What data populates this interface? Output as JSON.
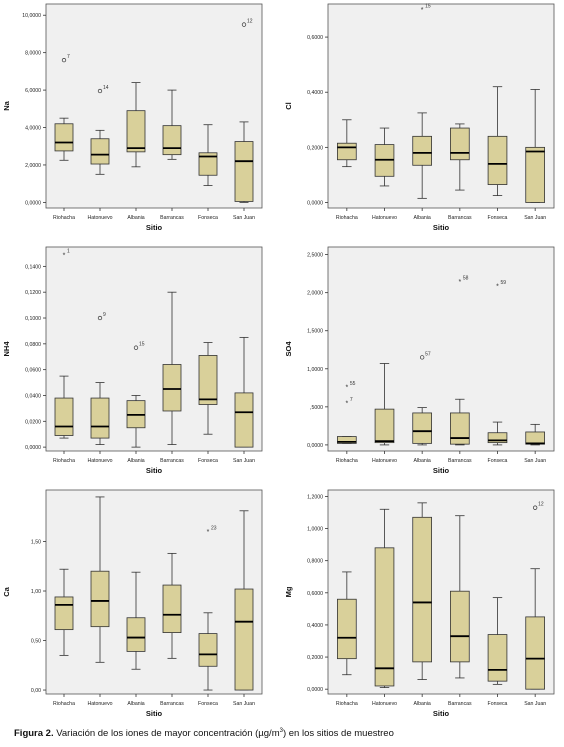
{
  "caption": {
    "label": "Figura 2.",
    "text_before_sup": "Variación de los iones de mayor concentración (µg/m",
    "sup": "3",
    "text_after_sup": ") en los sitios de muestreo"
  },
  "colors": {
    "box_fill": "#d9d09a",
    "box_stroke": "#333333",
    "panel_bg": "#f0f0f0",
    "outlier": "#333333"
  },
  "chart_data": [
    {
      "type": "boxplot",
      "ylabel": "Na",
      "xlabel": "Sitio",
      "categories": [
        "Riohacha",
        "Hatonuevo",
        "Albania",
        "Barrancas",
        "Fonseca",
        "San Juan"
      ],
      "ylim": [
        -0.3,
        10.6
      ],
      "yticks": [
        0,
        2,
        4,
        6,
        8,
        10
      ],
      "ytick_labels": [
        "0,0000",
        "2,0000",
        "4,0000",
        "6,0000",
        "8,0000",
        "10,0000"
      ],
      "boxes": [
        {
          "min": 2.25,
          "q1": 2.75,
          "median": 3.2,
          "q3": 4.2,
          "max": 4.5
        },
        {
          "min": 1.5,
          "q1": 2.05,
          "median": 2.55,
          "q3": 3.4,
          "max": 3.85
        },
        {
          "min": 1.9,
          "q1": 2.7,
          "median": 2.9,
          "q3": 4.9,
          "max": 6.4
        },
        {
          "min": 2.3,
          "q1": 2.55,
          "median": 2.9,
          "q3": 4.1,
          "max": 6.0
        },
        {
          "min": 0.9,
          "q1": 1.45,
          "median": 2.45,
          "q3": 2.65,
          "max": 4.15
        },
        {
          "min": 0.0,
          "q1": 0.05,
          "median": 2.2,
          "q3": 3.25,
          "max": 4.3
        }
      ],
      "outliers": [
        {
          "cat": 0,
          "value": 7.6,
          "label": "7",
          "marker": "circle"
        },
        {
          "cat": 1,
          "value": 5.95,
          "label": "14",
          "marker": "circle"
        },
        {
          "cat": 5,
          "value": 9.5,
          "label": "12",
          "marker": "circle"
        }
      ]
    },
    {
      "type": "boxplot",
      "ylabel": "Cl",
      "xlabel": "Sitio",
      "categories": [
        "Riohacha",
        "Hatonuevo",
        "Albania",
        "Barrancas",
        "Fonseca",
        "San Juan"
      ],
      "ylim": [
        -0.02,
        0.72
      ],
      "yticks": [
        0,
        0.2,
        0.4,
        0.6
      ],
      "ytick_labels": [
        "0,0000",
        "0,2000",
        "0,4000",
        "0,6000"
      ],
      "boxes": [
        {
          "min": 0.13,
          "q1": 0.155,
          "median": 0.2,
          "q3": 0.215,
          "max": 0.3
        },
        {
          "min": 0.06,
          "q1": 0.095,
          "median": 0.155,
          "q3": 0.21,
          "max": 0.27
        },
        {
          "min": 0.015,
          "q1": 0.135,
          "median": 0.18,
          "q3": 0.24,
          "max": 0.325
        },
        {
          "min": 0.045,
          "q1": 0.155,
          "median": 0.18,
          "q3": 0.27,
          "max": 0.285
        },
        {
          "min": 0.025,
          "q1": 0.065,
          "median": 0.14,
          "q3": 0.24,
          "max": 0.42
        },
        {
          "min": 0.0,
          "q1": 0.0,
          "median": 0.185,
          "q3": 0.2,
          "max": 0.41
        }
      ],
      "outliers": [
        {
          "cat": 2,
          "value": 0.7,
          "label": "15",
          "marker": "star"
        }
      ]
    },
    {
      "type": "boxplot",
      "ylabel": "NH4",
      "xlabel": "Sitio",
      "categories": [
        "Riohacha",
        "Hatonuevo",
        "Albania",
        "Barrancas",
        "Fonseca",
        "San Juan"
      ],
      "ylim": [
        -0.003,
        0.155
      ],
      "yticks": [
        0,
        0.02,
        0.04,
        0.06,
        0.08,
        0.1,
        0.12,
        0.14
      ],
      "ytick_labels": [
        "0,0000",
        "0,0200",
        "0,0400",
        "0,0600",
        "0,0800",
        "0,1000",
        "0,1200",
        "0,1400"
      ],
      "boxes": [
        {
          "min": 0.007,
          "q1": 0.009,
          "median": 0.016,
          "q3": 0.038,
          "max": 0.055
        },
        {
          "min": 0.002,
          "q1": 0.007,
          "median": 0.016,
          "q3": 0.038,
          "max": 0.05
        },
        {
          "min": 0.0,
          "q1": 0.015,
          "median": 0.025,
          "q3": 0.036,
          "max": 0.04
        },
        {
          "min": 0.002,
          "q1": 0.028,
          "median": 0.045,
          "q3": 0.064,
          "max": 0.12
        },
        {
          "min": 0.01,
          "q1": 0.033,
          "median": 0.037,
          "q3": 0.071,
          "max": 0.081
        },
        {
          "min": 0.0,
          "q1": 0.0,
          "median": 0.027,
          "q3": 0.042,
          "max": 0.085
        }
      ],
      "outliers": [
        {
          "cat": 0,
          "value": 0.149,
          "label": "1",
          "marker": "star"
        },
        {
          "cat": 1,
          "value": 0.1,
          "label": "9",
          "marker": "circle"
        },
        {
          "cat": 2,
          "value": 0.077,
          "label": "15",
          "marker": "circle"
        }
      ]
    },
    {
      "type": "boxplot",
      "ylabel": "SO4",
      "xlabel": "Sitio",
      "categories": [
        "Riohacha",
        "Hatonuevo",
        "Albania",
        "Barrancas",
        "Fonseca",
        "San Juan"
      ],
      "ylim": [
        -0.08,
        2.6
      ],
      "yticks": [
        0,
        0.5,
        1,
        1.5,
        2,
        2.5
      ],
      "ytick_labels": [
        "0,0000",
        ",5000",
        "1,0000",
        "1,5000",
        "2,0000",
        "2,5000"
      ],
      "boxes": [
        {
          "min": 0.02,
          "q1": 0.02,
          "median": 0.04,
          "q3": 0.11,
          "max": 0.11
        },
        {
          "min": 0.0,
          "q1": 0.03,
          "median": 0.05,
          "q3": 0.47,
          "max": 1.07
        },
        {
          "min": 0.0,
          "q1": 0.02,
          "median": 0.18,
          "q3": 0.42,
          "max": 0.49
        },
        {
          "min": 0.0,
          "q1": 0.01,
          "median": 0.09,
          "q3": 0.42,
          "max": 0.6
        },
        {
          "min": 0.0,
          "q1": 0.03,
          "median": 0.06,
          "q3": 0.16,
          "max": 0.3
        },
        {
          "min": 0.0,
          "q1": 0.01,
          "median": 0.02,
          "q3": 0.17,
          "max": 0.27
        }
      ],
      "outliers": [
        {
          "cat": 0,
          "value": 0.76,
          "label": "55",
          "marker": "star"
        },
        {
          "cat": 0,
          "value": 0.55,
          "label": "7",
          "marker": "star"
        },
        {
          "cat": 2,
          "value": 1.15,
          "label": "57",
          "marker": "circle"
        },
        {
          "cat": 3,
          "value": 2.15,
          "label": "58",
          "marker": "star"
        },
        {
          "cat": 4,
          "value": 2.09,
          "label": "59",
          "marker": "star"
        }
      ]
    },
    {
      "type": "boxplot",
      "ylabel": "Ca",
      "xlabel": "Sitio",
      "categories": [
        "Riohacha",
        "Hatonuevo",
        "Albania",
        "Barrancas",
        "Fonseca",
        "San Juan"
      ],
      "ylim": [
        -0.04,
        2.02
      ],
      "yticks": [
        0,
        0.5,
        1,
        1.5
      ],
      "ytick_labels": [
        "0,00",
        "0,50",
        "1,00",
        "1,50"
      ],
      "boxes": [
        {
          "min": 0.35,
          "q1": 0.61,
          "median": 0.86,
          "q3": 0.94,
          "max": 1.22
        },
        {
          "min": 0.28,
          "q1": 0.64,
          "median": 0.9,
          "q3": 1.2,
          "max": 1.95
        },
        {
          "min": 0.21,
          "q1": 0.39,
          "median": 0.53,
          "q3": 0.73,
          "max": 1.19
        },
        {
          "min": 0.32,
          "q1": 0.58,
          "median": 0.76,
          "q3": 1.06,
          "max": 1.38
        },
        {
          "min": 0.0,
          "q1": 0.24,
          "median": 0.36,
          "q3": 0.57,
          "max": 0.78
        },
        {
          "min": 0.0,
          "q1": 0.0,
          "median": 0.69,
          "q3": 1.02,
          "max": 1.81
        }
      ],
      "outliers": [
        {
          "cat": 4,
          "value": 1.6,
          "label": "23",
          "marker": "star"
        }
      ]
    },
    {
      "type": "boxplot",
      "ylabel": "Mg",
      "xlabel": "Sitio",
      "categories": [
        "Riohacha",
        "Hatonuevo",
        "Albania",
        "Barrancas",
        "Fonseca",
        "San Juan"
      ],
      "ylim": [
        -0.03,
        1.24
      ],
      "yticks": [
        0,
        0.2,
        0.4,
        0.6,
        0.8,
        1.0,
        1.2
      ],
      "ytick_labels": [
        "0,0000",
        "0,2000",
        "0,4000",
        "0,6000",
        "0,8000",
        "1,0000",
        "1,2000"
      ],
      "boxes": [
        {
          "min": 0.09,
          "q1": 0.19,
          "median": 0.32,
          "q3": 0.56,
          "max": 0.73
        },
        {
          "min": 0.01,
          "q1": 0.02,
          "median": 0.13,
          "q3": 0.88,
          "max": 1.12
        },
        {
          "min": 0.06,
          "q1": 0.17,
          "median": 0.54,
          "q3": 1.07,
          "max": 1.16
        },
        {
          "min": 0.07,
          "q1": 0.17,
          "median": 0.33,
          "q3": 0.61,
          "max": 1.08
        },
        {
          "min": 0.03,
          "q1": 0.05,
          "median": 0.12,
          "q3": 0.34,
          "max": 0.57
        },
        {
          "min": 0.0,
          "q1": 0.0,
          "median": 0.19,
          "q3": 0.45,
          "max": 0.75
        }
      ],
      "outliers": [
        {
          "cat": 5,
          "value": 1.13,
          "label": "12",
          "marker": "circle"
        }
      ]
    }
  ]
}
